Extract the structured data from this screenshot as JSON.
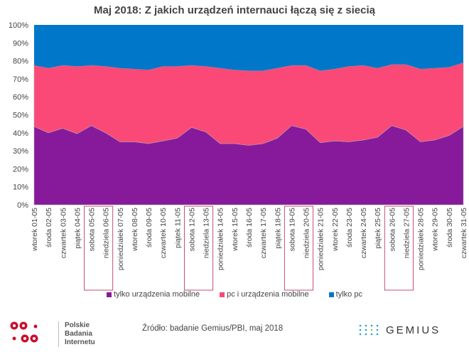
{
  "chart_data": {
    "type": "area",
    "stacked": "100%",
    "title": "Maj 2018: Z jakich urządzeń internauci łączą się z siecią",
    "categories": [
      "wtorek 01-05",
      "środa 02-05",
      "czwartek 03-05",
      "piątek 04-05",
      "sobota 05-05",
      "niedziela 06-05",
      "poniedziałek 07-05",
      "wtorek 08-05",
      "środa 09-05",
      "czwartek 10-05",
      "piątek 11-05",
      "sobota 12-05",
      "niedziela 13-05",
      "poniedziałek 14-05",
      "wtorek 15-05",
      "środa 16-05",
      "czwartek 17-05",
      "piątek 18-05",
      "sobota 19-05",
      "niedziela 20-05",
      "poniedziałek 21-05",
      "wtorek 22-05",
      "środa 23-05",
      "czwartek 24-05",
      "piątek 25-05",
      "sobota 26-05",
      "niedziela 27-05",
      "poniedziałek 28-05",
      "wtorek 29-05",
      "środa 30-05",
      "czwartek 31-05"
    ],
    "series": [
      {
        "name": "tylko urządzenia mobilne",
        "color": "#861a9b",
        "values": [
          43.5,
          40,
          42.5,
          39.5,
          44,
          40,
          35,
          35,
          34,
          35.5,
          37,
          43,
          40.5,
          34,
          34,
          33,
          34,
          37,
          44,
          42,
          34.5,
          35.5,
          35,
          36,
          37.5,
          44,
          41.5,
          35,
          36,
          38.5,
          43.5
        ]
      },
      {
        "name": "pc i urządzenia mobilne",
        "color": "#fb4977",
        "values": [
          34,
          36,
          35,
          37.5,
          33.5,
          37,
          41,
          40.5,
          41,
          41.5,
          40,
          34.5,
          36.5,
          42,
          41,
          41.5,
          40.5,
          39,
          33.5,
          35.5,
          40,
          40,
          42,
          41.5,
          38.5,
          34,
          36.5,
          40.5,
          40,
          38,
          35.5
        ]
      },
      {
        "name": "tylko pc",
        "color": "#0077c8",
        "values": [
          22.5,
          24,
          22.5,
          23,
          22.5,
          23,
          24,
          24.5,
          25,
          23,
          23,
          22.5,
          23,
          24,
          25,
          25.5,
          25.5,
          24,
          22.5,
          22.5,
          25.5,
          24.5,
          23,
          22.5,
          24,
          22,
          22,
          24.5,
          24,
          23.5,
          21
        ]
      }
    ],
    "yticks": [
      "0%",
      "10%",
      "20%",
      "30%",
      "40%",
      "50%",
      "60%",
      "70%",
      "80%",
      "90%",
      "100%"
    ],
    "ylim": [
      0,
      100
    ],
    "highlighted_weekends": [
      [
        4,
        5
      ],
      [
        11,
        12
      ],
      [
        18,
        19
      ],
      [
        25,
        26
      ]
    ],
    "highlight_color": "#c0506e",
    "legend_position": "bottom"
  },
  "footer": {
    "source": "Źródło: badanie Gemius/PBI, maj 2018",
    "pbi_logo": [
      "Polskie",
      "Badania",
      "Internetu"
    ],
    "pbi_color": "#c8102e",
    "gemius_logo": "GEMIUS"
  }
}
